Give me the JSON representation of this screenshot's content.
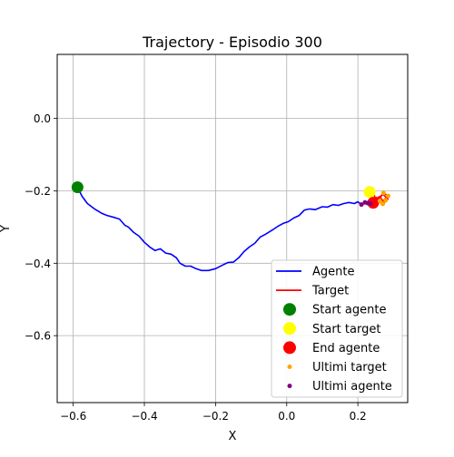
{
  "chart_data": {
    "type": "line",
    "title": "Trajectory - Episodio 300",
    "xlabel": "X",
    "ylabel": "Y",
    "xlim": [
      -0.645,
      0.34
    ],
    "ylim": [
      -0.785,
      0.177
    ],
    "x_ticks": [
      -0.6,
      -0.4,
      -0.2,
      0.0,
      0.2
    ],
    "x_tick_labels": [
      "−0.6",
      "−0.4",
      "−0.2",
      "0.0",
      "0.2"
    ],
    "y_ticks": [
      0.0,
      -0.2,
      -0.4,
      -0.6
    ],
    "y_tick_labels": [
      "0.0",
      "−0.2",
      "−0.4",
      "−0.6"
    ],
    "grid": true,
    "legend_position": "lower-right",
    "colors": {
      "agent": "#0000ff",
      "target": "#ff0000",
      "start_agent": "#008000",
      "start_target": "#ffff00",
      "end_agent": "#ff0000",
      "last_target": "#ffa500",
      "last_agent": "#800080",
      "grid": "#b0b0b0"
    },
    "series": [
      {
        "name": "Agente",
        "kind": "line",
        "x": [
          -0.588,
          -0.575,
          -0.56,
          -0.54,
          -0.52,
          -0.505,
          -0.49,
          -0.47,
          -0.455,
          -0.445,
          -0.43,
          -0.415,
          -0.4,
          -0.385,
          -0.37,
          -0.355,
          -0.34,
          -0.325,
          -0.31,
          -0.3,
          -0.285,
          -0.27,
          -0.255,
          -0.24,
          -0.22,
          -0.2,
          -0.18,
          -0.165,
          -0.15,
          -0.135,
          -0.12,
          -0.105,
          -0.09,
          -0.075,
          -0.06,
          -0.04,
          -0.025,
          -0.01,
          0.005,
          0.02,
          0.035,
          0.05,
          0.065,
          0.08,
          0.1,
          0.115,
          0.13,
          0.145,
          0.16,
          0.175,
          0.19,
          0.2,
          0.21,
          0.22,
          0.235
        ],
        "y": [
          -0.19,
          -0.215,
          -0.235,
          -0.25,
          -0.262,
          -0.268,
          -0.272,
          -0.278,
          -0.295,
          -0.3,
          -0.315,
          -0.325,
          -0.342,
          -0.355,
          -0.365,
          -0.36,
          -0.372,
          -0.375,
          -0.385,
          -0.4,
          -0.408,
          -0.408,
          -0.415,
          -0.42,
          -0.42,
          -0.415,
          -0.405,
          -0.398,
          -0.397,
          -0.385,
          -0.368,
          -0.355,
          -0.345,
          -0.328,
          -0.32,
          -0.308,
          -0.298,
          -0.29,
          -0.285,
          -0.275,
          -0.268,
          -0.253,
          -0.25,
          -0.252,
          -0.244,
          -0.245,
          -0.238,
          -0.24,
          -0.235,
          -0.232,
          -0.235,
          -0.23,
          -0.238,
          -0.232,
          -0.235
        ]
      },
      {
        "name": "Target",
        "kind": "line",
        "x": [
          0.235,
          0.245,
          0.25,
          0.262,
          0.27,
          0.28,
          0.275,
          0.285,
          0.27,
          0.262,
          0.255,
          0.248,
          0.242,
          0.252,
          0.26,
          0.27,
          0.278,
          0.285,
          0.272,
          0.26,
          0.25,
          0.24
        ],
        "y": [
          -0.205,
          -0.21,
          -0.222,
          -0.215,
          -0.228,
          -0.218,
          -0.232,
          -0.222,
          -0.21,
          -0.218,
          -0.226,
          -0.234,
          -0.226,
          -0.218,
          -0.228,
          -0.236,
          -0.226,
          -0.214,
          -0.206,
          -0.22,
          -0.232,
          -0.225
        ]
      },
      {
        "name": "Start agente",
        "kind": "marker",
        "x": [
          -0.588
        ],
        "y": [
          -0.19
        ]
      },
      {
        "name": "Start target",
        "kind": "marker",
        "x": [
          0.233
        ],
        "y": [
          -0.203
        ]
      },
      {
        "name": "End agente",
        "kind": "marker",
        "x": [
          0.243
        ],
        "y": [
          -0.233
        ]
      },
      {
        "name": "Ultimi target",
        "kind": "scatter",
        "x": [
          0.262,
          0.27,
          0.278,
          0.285,
          0.272
        ],
        "y": [
          -0.228,
          -0.236,
          -0.226,
          -0.214,
          -0.206
        ]
      },
      {
        "name": "Ultimi agente",
        "kind": "scatter",
        "x": [
          0.21,
          0.22,
          0.228,
          0.235
        ],
        "y": [
          -0.238,
          -0.232,
          -0.234,
          -0.235
        ]
      }
    ]
  }
}
